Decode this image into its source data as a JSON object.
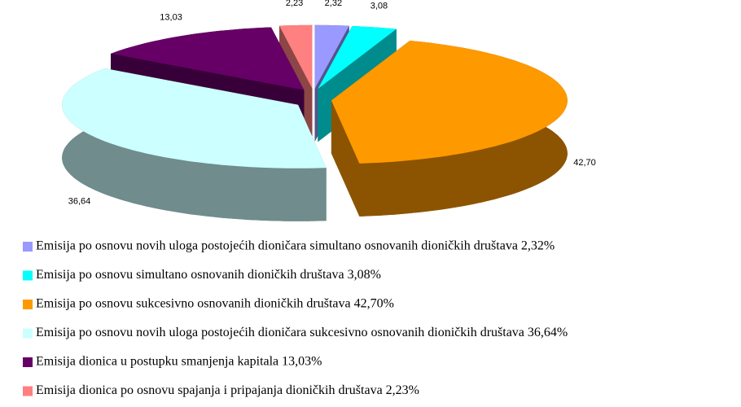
{
  "chart_data": {
    "type": "pie3d",
    "categories": [
      "Emisija po osnovu novih uloga postojećih dioničara simultano osnovanih dioničkih društava 2,32%",
      "Emisija po osnovu simultano osnovanih dioničkih društava 3,08%",
      "Emisija po osnovu sukcesivno osnovanih dioničkih društava 42,70%",
      "Emisija po osnovu novih uloga postojećih dioničara sukcesivno osnovanih dioničkih društava 36,64%",
      "Emisija dionica u postupku smanjenja kapitala 13,03%",
      "Emisija dionica po osnovu spajanja i pripajanja dioničkih društava 2,23%"
    ],
    "values": [
      2.32,
      3.08,
      42.7,
      36.64,
      13.03,
      2.23
    ],
    "value_labels": [
      "2,32",
      "3,08",
      "42,70",
      "36,64",
      "13,03",
      "2,23"
    ],
    "colors": [
      "#9999ff",
      "#00ffff",
      "#ff9900",
      "#ccffff",
      "#660066",
      "#ff8080"
    ],
    "legend": "bottom"
  }
}
